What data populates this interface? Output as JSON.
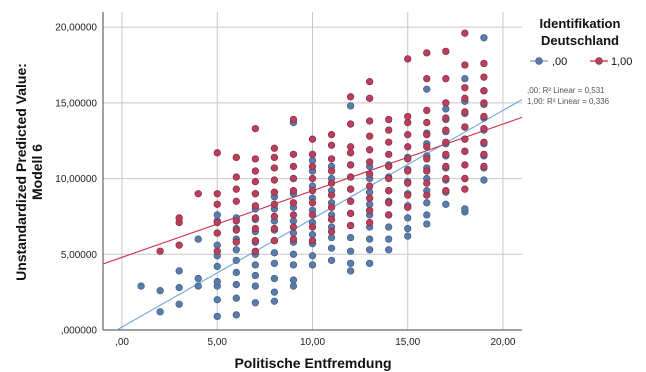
{
  "chart_data": {
    "type": "scatter",
    "xlabel": "Politische Entfremdung",
    "ylabel_lines": [
      "Unstandardized Predicted Value:",
      "Modell 6"
    ],
    "xlim": [
      -1,
      21
    ],
    "ylim": [
      0,
      21
    ],
    "x_ticks": [
      0,
      5,
      10,
      15,
      20
    ],
    "x_tick_labels": [
      ",00",
      "5,00",
      "10,00",
      "15,00",
      "20,00"
    ],
    "y_ticks": [
      0,
      5,
      10,
      15,
      20
    ],
    "y_tick_labels": [
      ",000000",
      "5,00000",
      "10,00000",
      "15,00000",
      "20,00000"
    ],
    "grid": true,
    "legend": {
      "title_lines": [
        "Identifikation",
        "Deutschland"
      ],
      "placement": "top-right"
    },
    "series": [
      {
        "name": ",00",
        "color": "#5b7ba8",
        "fit_line": {
          "intercept": 0.2,
          "slope": 0.715
        },
        "r2_label": ",00: R² Linear = 0,531",
        "points": [
          [
            1,
            2.9
          ],
          [
            2,
            1.2
          ],
          [
            2,
            2.6
          ],
          [
            3,
            1.7
          ],
          [
            3,
            2.8
          ],
          [
            3,
            3.9
          ],
          [
            4,
            2.9
          ],
          [
            4,
            3.4
          ],
          [
            4,
            6.0
          ],
          [
            5,
            0.9
          ],
          [
            5,
            2.0
          ],
          [
            5,
            2.9
          ],
          [
            5,
            3.2
          ],
          [
            5,
            4.2
          ],
          [
            5,
            4.9
          ],
          [
            5,
            5.6
          ],
          [
            5,
            6.4
          ],
          [
            5,
            7.2
          ],
          [
            5,
            7.6
          ],
          [
            6,
            1.0
          ],
          [
            6,
            2.1
          ],
          [
            6,
            3.0
          ],
          [
            6,
            3.8
          ],
          [
            6,
            4.6
          ],
          [
            6,
            5.3
          ],
          [
            6,
            6.0
          ],
          [
            6,
            6.7
          ],
          [
            6,
            7.4
          ],
          [
            7,
            1.8
          ],
          [
            7,
            2.9
          ],
          [
            7,
            3.6
          ],
          [
            7,
            4.3
          ],
          [
            7,
            5.0
          ],
          [
            7,
            5.8
          ],
          [
            7,
            6.5
          ],
          [
            7,
            7.3
          ],
          [
            7,
            8.0
          ],
          [
            7,
            9.0
          ],
          [
            8,
            1.9
          ],
          [
            8,
            2.5
          ],
          [
            8,
            3.4
          ],
          [
            8,
            4.4
          ],
          [
            8,
            5.1
          ],
          [
            8,
            5.9
          ],
          [
            8,
            6.6
          ],
          [
            8,
            7.2
          ],
          [
            8,
            8.0
          ],
          [
            8,
            8.8
          ],
          [
            9,
            2.9
          ],
          [
            9,
            3.3
          ],
          [
            9,
            4.3
          ],
          [
            9,
            5.0
          ],
          [
            9,
            5.8
          ],
          [
            9,
            6.4
          ],
          [
            9,
            7.2
          ],
          [
            9,
            8.1
          ],
          [
            9,
            9.0
          ],
          [
            9,
            10.0
          ],
          [
            9,
            13.7
          ],
          [
            10,
            4.3
          ],
          [
            10,
            4.9
          ],
          [
            10,
            5.7
          ],
          [
            10,
            6.3
          ],
          [
            10,
            7.1
          ],
          [
            10,
            7.9
          ],
          [
            10,
            8.7
          ],
          [
            10,
            9.5
          ],
          [
            10,
            10.5
          ],
          [
            10,
            11.2
          ],
          [
            11,
            4.6
          ],
          [
            11,
            5.4
          ],
          [
            11,
            6.1
          ],
          [
            11,
            6.8
          ],
          [
            11,
            7.6
          ],
          [
            11,
            8.4
          ],
          [
            11,
            9.2
          ],
          [
            11,
            10.0
          ],
          [
            11,
            10.8
          ],
          [
            12,
            3.9
          ],
          [
            12,
            4.4
          ],
          [
            12,
            5.2
          ],
          [
            12,
            6.1
          ],
          [
            12,
            6.9
          ],
          [
            12,
            7.7
          ],
          [
            12,
            8.5
          ],
          [
            12,
            9.3
          ],
          [
            12,
            10.1
          ],
          [
            12,
            10.9
          ],
          [
            12,
            14.8
          ],
          [
            13,
            4.4
          ],
          [
            13,
            5.3
          ],
          [
            13,
            6.0
          ],
          [
            13,
            6.8
          ],
          [
            13,
            7.6
          ],
          [
            13,
            8.3
          ],
          [
            13,
            9.1
          ],
          [
            13,
            10.0
          ],
          [
            13,
            10.8
          ],
          [
            14,
            5.3
          ],
          [
            14,
            6.0
          ],
          [
            14,
            6.8
          ],
          [
            14,
            7.6
          ],
          [
            14,
            8.5
          ],
          [
            14,
            9.2
          ],
          [
            14,
            10.1
          ],
          [
            14,
            10.9
          ],
          [
            15,
            6.2
          ],
          [
            15,
            6.7
          ],
          [
            15,
            7.4
          ],
          [
            15,
            8.2
          ],
          [
            15,
            9.0
          ],
          [
            15,
            9.8
          ],
          [
            15,
            10.6
          ],
          [
            15,
            11.4
          ],
          [
            16,
            7.0
          ],
          [
            16,
            7.6
          ],
          [
            16,
            8.4
          ],
          [
            16,
            9.2
          ],
          [
            16,
            10.0
          ],
          [
            16,
            10.7
          ],
          [
            16,
            11.5
          ],
          [
            16,
            12.3
          ],
          [
            16,
            13.0
          ],
          [
            16,
            15.9
          ],
          [
            17,
            8.3
          ],
          [
            17,
            9.1
          ],
          [
            17,
            9.9
          ],
          [
            17,
            10.7
          ],
          [
            17,
            11.5
          ],
          [
            17,
            12.3
          ],
          [
            17,
            13.1
          ],
          [
            17,
            13.9
          ],
          [
            17,
            14.6
          ],
          [
            18,
            7.8
          ],
          [
            18,
            8.0
          ],
          [
            18,
            10.0
          ],
          [
            18,
            11.8
          ],
          [
            18,
            12.6
          ],
          [
            18,
            13.4
          ],
          [
            18,
            14.3
          ],
          [
            18,
            15.1
          ],
          [
            18,
            16.6
          ],
          [
            19,
            9.9
          ],
          [
            19,
            10.7
          ],
          [
            19,
            11.5
          ],
          [
            19,
            12.3
          ],
          [
            19,
            13.2
          ],
          [
            19,
            14.0
          ],
          [
            19,
            14.9
          ],
          [
            19,
            15.8
          ],
          [
            19,
            19.3
          ]
        ]
      },
      {
        "name": "1,00",
        "color": "#b8405a",
        "fit_line": {
          "intercept": 4.8,
          "slope": 0.44
        },
        "r2_label": "1,00: R² Linear = 0,336",
        "points": [
          [
            2,
            5.2
          ],
          [
            3,
            5.6
          ],
          [
            3,
            7.1
          ],
          [
            3,
            7.4
          ],
          [
            4,
            9.0
          ],
          [
            5,
            5.2
          ],
          [
            5,
            6.4
          ],
          [
            5,
            7.1
          ],
          [
            5,
            8.3
          ],
          [
            5,
            9.0
          ],
          [
            5,
            11.7
          ],
          [
            6,
            5.8
          ],
          [
            6,
            6.6
          ],
          [
            6,
            7.2
          ],
          [
            6,
            8.5
          ],
          [
            6,
            9.3
          ],
          [
            6,
            10.1
          ],
          [
            6,
            11.4
          ],
          [
            7,
            5.2
          ],
          [
            7,
            5.9
          ],
          [
            7,
            6.7
          ],
          [
            7,
            7.4
          ],
          [
            7,
            8.2
          ],
          [
            7,
            9.0
          ],
          [
            7,
            9.8
          ],
          [
            7,
            10.5
          ],
          [
            7,
            11.3
          ],
          [
            7,
            13.3
          ],
          [
            8,
            5.9
          ],
          [
            8,
            6.7
          ],
          [
            8,
            7.5
          ],
          [
            8,
            8.3
          ],
          [
            8,
            9.1
          ],
          [
            8,
            9.9
          ],
          [
            8,
            10.7
          ],
          [
            8,
            11.4
          ],
          [
            8,
            12.0
          ],
          [
            9,
            6.0
          ],
          [
            9,
            6.8
          ],
          [
            9,
            7.6
          ],
          [
            9,
            8.4
          ],
          [
            9,
            9.2
          ],
          [
            9,
            10.0
          ],
          [
            9,
            10.8
          ],
          [
            9,
            11.6
          ],
          [
            9,
            13.9
          ],
          [
            10,
            5.9
          ],
          [
            10,
            6.8
          ],
          [
            10,
            7.6
          ],
          [
            10,
            8.4
          ],
          [
            10,
            9.2
          ],
          [
            10,
            10.0
          ],
          [
            10,
            10.8
          ],
          [
            10,
            11.6
          ],
          [
            10,
            12.6
          ],
          [
            11,
            6.5
          ],
          [
            11,
            7.3
          ],
          [
            11,
            8.1
          ],
          [
            11,
            8.9
          ],
          [
            11,
            9.7
          ],
          [
            11,
            10.5
          ],
          [
            11,
            11.3
          ],
          [
            11,
            12.2
          ],
          [
            11,
            12.9
          ],
          [
            12,
            6.9
          ],
          [
            12,
            7.7
          ],
          [
            12,
            8.5
          ],
          [
            12,
            9.3
          ],
          [
            12,
            10.1
          ],
          [
            12,
            10.9
          ],
          [
            12,
            11.7
          ],
          [
            12,
            12.1
          ],
          [
            12,
            13.6
          ],
          [
            12,
            15.4
          ],
          [
            13,
            7.1
          ],
          [
            13,
            7.9
          ],
          [
            13,
            8.7
          ],
          [
            13,
            9.5
          ],
          [
            13,
            10.3
          ],
          [
            13,
            11.1
          ],
          [
            13,
            11.9
          ],
          [
            13,
            12.8
          ],
          [
            13,
            13.8
          ],
          [
            13,
            15.3
          ],
          [
            13,
            16.4
          ],
          [
            14,
            7.6
          ],
          [
            14,
            8.4
          ],
          [
            14,
            9.2
          ],
          [
            14,
            10.0
          ],
          [
            14,
            10.8
          ],
          [
            14,
            11.6
          ],
          [
            14,
            12.4
          ],
          [
            14,
            13.2
          ],
          [
            14,
            13.9
          ],
          [
            15,
            8.1
          ],
          [
            15,
            8.9
          ],
          [
            15,
            9.7
          ],
          [
            15,
            10.5
          ],
          [
            15,
            11.3
          ],
          [
            15,
            12.1
          ],
          [
            15,
            12.9
          ],
          [
            15,
            13.7
          ],
          [
            15,
            14.1
          ],
          [
            15,
            17.9
          ],
          [
            16,
            8.9
          ],
          [
            16,
            9.7
          ],
          [
            16,
            10.5
          ],
          [
            16,
            11.3
          ],
          [
            16,
            12.1
          ],
          [
            16,
            12.9
          ],
          [
            16,
            13.7
          ],
          [
            16,
            14.5
          ],
          [
            16,
            16.6
          ],
          [
            16,
            18.3
          ],
          [
            17,
            9.2
          ],
          [
            17,
            10.0
          ],
          [
            17,
            10.8
          ],
          [
            17,
            11.6
          ],
          [
            17,
            12.4
          ],
          [
            17,
            13.2
          ],
          [
            17,
            14.0
          ],
          [
            17,
            15.0
          ],
          [
            17,
            16.6
          ],
          [
            17,
            18.4
          ],
          [
            18,
            9.3
          ],
          [
            18,
            10.0
          ],
          [
            18,
            10.9
          ],
          [
            18,
            11.8
          ],
          [
            18,
            12.6
          ],
          [
            18,
            13.4
          ],
          [
            18,
            14.4
          ],
          [
            18,
            15.3
          ],
          [
            18,
            16.0
          ],
          [
            18,
            17.5
          ],
          [
            18,
            19.6
          ],
          [
            19,
            10.8
          ],
          [
            19,
            11.6
          ],
          [
            19,
            12.4
          ],
          [
            19,
            13.3
          ],
          [
            19,
            14.1
          ],
          [
            19,
            15.0
          ],
          [
            19,
            15.8
          ],
          [
            19,
            16.7
          ],
          [
            19,
            17.6
          ]
        ]
      }
    ]
  }
}
